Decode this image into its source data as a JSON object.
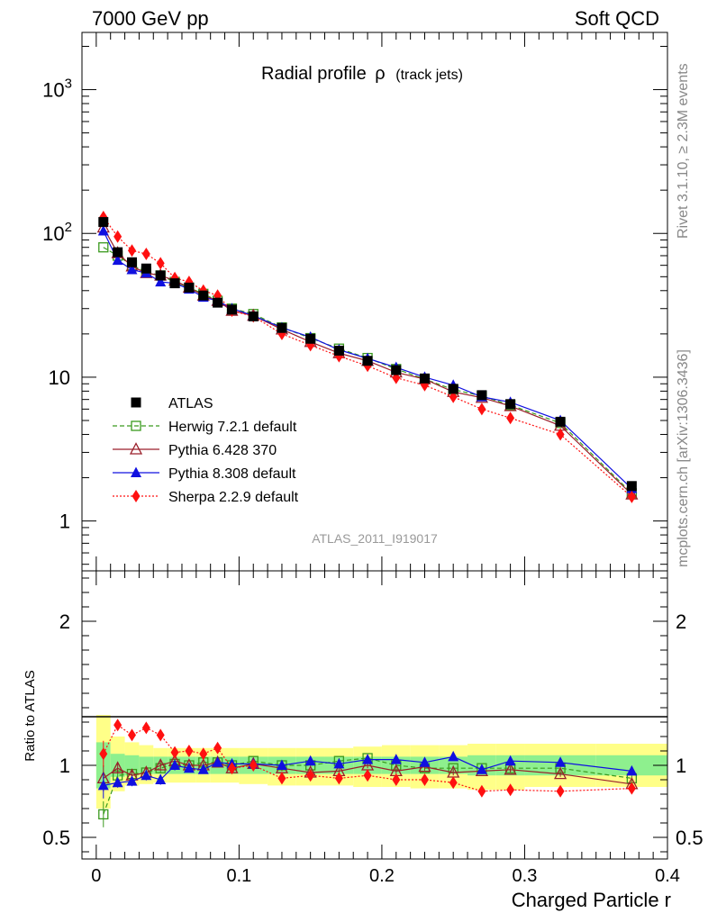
{
  "header": {
    "left": "7000 GeV pp",
    "right": "Soft QCD"
  },
  "side_labels": {
    "rivet": "Rivet 3.1.10, ≥ 2.3M events",
    "mcplots": "mcplots.cern.ch [arXiv:1306.3436]"
  },
  "colors": {
    "atlas": "#000000",
    "herwig": "#3a9a1e",
    "pythia6": "#9a1f2a",
    "pythia8": "#1010e0",
    "sherpa": "#ff1010",
    "band_inner": "#8ef08e",
    "band_outer": "#ffff88"
  },
  "chart_data": [
    {
      "type": "line",
      "title_main": "Radial profile",
      "title_symbol": "ρ",
      "title_sub": "(track jets)",
      "watermark": "ATLAS_2011_I919017",
      "yscale": "log",
      "ylim": [
        0.45,
        2500
      ],
      "xlim": [
        -0.01,
        0.4
      ],
      "ytick_labels": [
        {
          "v": 1000,
          "base": "10",
          "exp": "3"
        },
        {
          "v": 100,
          "base": "10",
          "exp": "2"
        },
        {
          "v": 10,
          "base": "10",
          "exp": ""
        },
        {
          "v": 1,
          "base": "1",
          "exp": ""
        }
      ],
      "x": [
        0.005,
        0.015,
        0.025,
        0.035,
        0.045,
        0.055,
        0.065,
        0.075,
        0.085,
        0.095,
        0.11,
        0.13,
        0.15,
        0.17,
        0.19,
        0.21,
        0.23,
        0.25,
        0.27,
        0.29,
        0.325,
        0.375
      ],
      "legend": [
        "ATLAS",
        "Herwig 7.2.1 default",
        "Pythia 6.428 370",
        "Pythia 8.308 default",
        "Sherpa 2.2.9 default"
      ],
      "legend_position": "bottom-left",
      "series": [
        {
          "name": "ATLAS",
          "key": "atlas",
          "marker": "square-filled",
          "values": [
            120,
            74,
            63,
            57,
            51,
            45,
            42,
            37,
            33,
            29.5,
            26.5,
            22,
            18.5,
            15.3,
            13,
            11.2,
            9.8,
            8.3,
            7.5,
            6.5,
            4.9,
            1.75
          ]
        },
        {
          "name": "Herwig 7.2.1 default",
          "key": "herwig",
          "marker": "square-open",
          "line": "dashed",
          "values": [
            80,
            70,
            60,
            54,
            51,
            46,
            42,
            38,
            34,
            30,
            27.5,
            22.2,
            18.7,
            15.8,
            13.6,
            11.4,
            9.7,
            8.2,
            7.4,
            6.4,
            4.8,
            1.56
          ]
        },
        {
          "name": "Pythia 6.428 370",
          "key": "pythia6",
          "marker": "triangle-open",
          "line": "solid",
          "values": [
            110,
            73,
            59,
            53,
            51,
            47,
            42,
            37,
            34,
            29,
            26.8,
            21.5,
            17.6,
            14.7,
            13,
            10.8,
            9.7,
            7.9,
            7.2,
            6.3,
            4.6,
            1.53
          ]
        },
        {
          "name": "Pythia 8.308 default",
          "key": "pythia8",
          "marker": "triangle-filled",
          "line": "solid",
          "values": [
            104,
            65,
            56,
            53,
            46,
            45,
            41,
            36,
            34,
            30,
            26.8,
            22.1,
            19,
            15.5,
            13.5,
            11.7,
            10,
            8.8,
            7.3,
            6.7,
            5.0,
            1.68
          ]
        },
        {
          "name": "Sherpa 2.2.9 default",
          "key": "sherpa",
          "marker": "diamond-filled",
          "line": "dotted",
          "values": [
            130,
            95,
            76,
            72,
            62,
            49,
            46,
            40,
            37,
            29,
            26.5,
            20,
            16.7,
            14,
            12,
            9.9,
            8.8,
            7.3,
            6.0,
            5.2,
            4.0,
            1.47
          ]
        }
      ]
    },
    {
      "type": "line",
      "ylabel": "Ratio to ATLAS",
      "xlabel": "Charged Particle r",
      "ylim": [
        0.35,
        2.35
      ],
      "xlim": [
        -0.01,
        0.4
      ],
      "ytick_labels": [
        "2",
        "1",
        "0.5"
      ],
      "xtick_labels": [
        "0",
        "0.1",
        "0.2",
        "0.3",
        "0.4"
      ],
      "x_edges": [
        0,
        0.01,
        0.02,
        0.03,
        0.04,
        0.05,
        0.06,
        0.07,
        0.08,
        0.09,
        0.1,
        0.12,
        0.14,
        0.16,
        0.18,
        0.2,
        0.22,
        0.24,
        0.26,
        0.28,
        0.3,
        0.35,
        0.4
      ],
      "band_inner": {
        "lo": [
          0.84,
          0.92,
          0.93,
          0.94,
          0.94,
          0.94,
          0.94,
          0.94,
          0.94,
          0.94,
          0.94,
          0.94,
          0.94,
          0.94,
          0.94,
          0.94,
          0.94,
          0.94,
          0.93,
          0.93,
          0.93,
          0.93
        ],
        "hi": [
          1.16,
          1.08,
          1.07,
          1.06,
          1.06,
          1.06,
          1.06,
          1.06,
          1.06,
          1.06,
          1.06,
          1.06,
          1.06,
          1.06,
          1.06,
          1.06,
          1.06,
          1.06,
          1.07,
          1.07,
          1.07,
          1.07
        ]
      },
      "band_outer": {
        "lo": [
          0.7,
          0.82,
          0.86,
          0.87,
          0.88,
          0.88,
          0.88,
          0.88,
          0.88,
          0.88,
          0.87,
          0.86,
          0.86,
          0.86,
          0.85,
          0.85,
          0.84,
          0.84,
          0.83,
          0.83,
          0.85,
          0.85
        ],
        "hi": [
          1.35,
          1.2,
          1.16,
          1.14,
          1.12,
          1.12,
          1.12,
          1.12,
          1.12,
          1.12,
          1.12,
          1.12,
          1.12,
          1.12,
          1.13,
          1.14,
          1.14,
          1.14,
          1.15,
          1.15,
          1.15,
          1.15
        ]
      },
      "series": [
        {
          "name": "Herwig 7.2.1 default",
          "key": "herwig",
          "marker": "square-open",
          "line": "dashed",
          "values": [
            0.66,
            0.93,
            0.94,
            0.95,
            0.98,
            1.01,
            1.0,
            1.02,
            1.02,
            1.0,
            1.03,
            1.0,
            1.0,
            1.03,
            1.05,
            1.0,
            0.98,
            0.98,
            0.98,
            0.98,
            0.98,
            0.91
          ]
        },
        {
          "name": "Pythia 6.428 370",
          "key": "pythia6",
          "marker": "triangle-open",
          "line": "solid",
          "values": [
            0.91,
            0.98,
            0.93,
            0.95,
            1.0,
            1.03,
            1.0,
            1.0,
            1.02,
            0.98,
            1.01,
            0.98,
            0.95,
            0.96,
            1.0,
            0.96,
            0.99,
            0.95,
            0.96,
            0.97,
            0.94,
            0.87
          ]
        },
        {
          "name": "Pythia 8.308 default",
          "key": "pythia8",
          "marker": "triangle-filled",
          "line": "solid",
          "values": [
            0.86,
            0.88,
            0.89,
            0.93,
            0.9,
            1.0,
            0.98,
            0.97,
            1.02,
            1.01,
            1.01,
            1.0,
            1.03,
            1.01,
            1.04,
            1.04,
            1.02,
            1.06,
            0.97,
            1.03,
            1.02,
            0.96
          ]
        },
        {
          "name": "Sherpa 2.2.9 default",
          "key": "sherpa",
          "marker": "diamond-filled",
          "line": "dotted",
          "values": [
            1.08,
            1.28,
            1.21,
            1.26,
            1.21,
            1.09,
            1.1,
            1.08,
            1.12,
            0.98,
            1.0,
            0.91,
            0.93,
            0.91,
            0.93,
            0.9,
            0.9,
            0.88,
            0.82,
            0.83,
            0.82,
            0.84
          ]
        }
      ]
    }
  ]
}
